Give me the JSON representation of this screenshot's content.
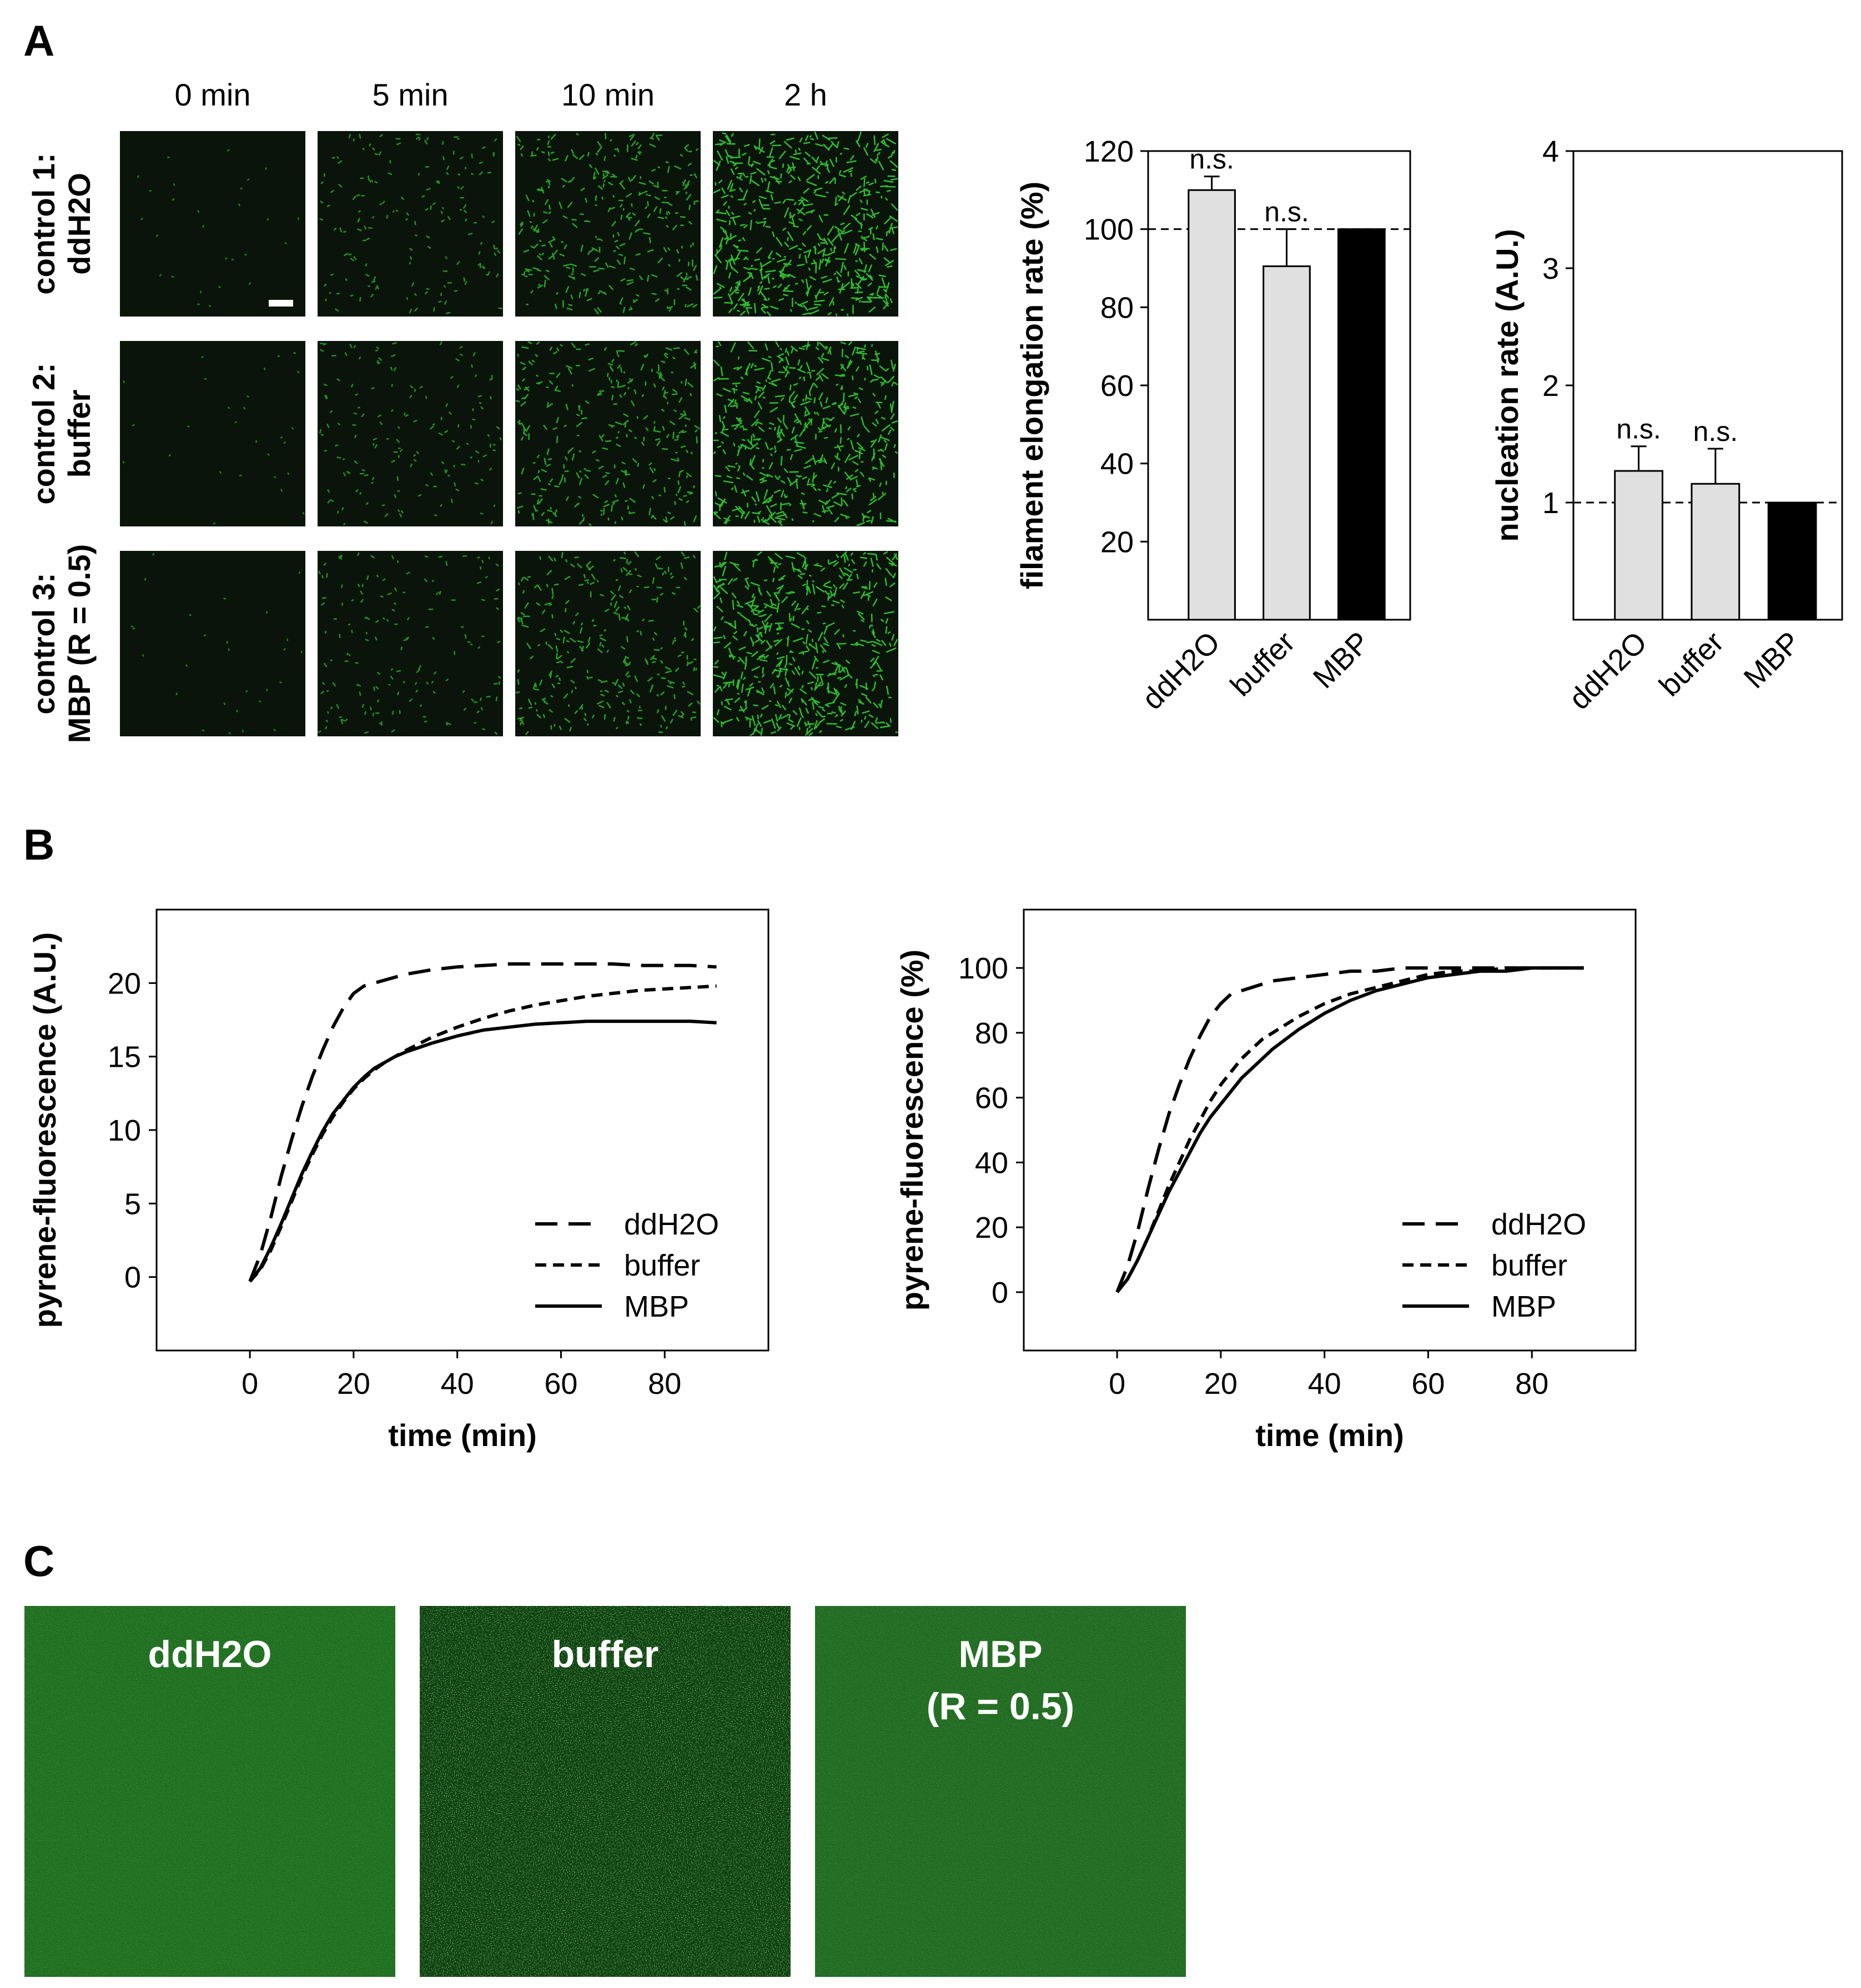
{
  "panels": {
    "a": "A",
    "b": "B",
    "c": "C"
  },
  "panel_a": {
    "time_labels": [
      "0 min",
      "5 min",
      "10 min",
      "2 h"
    ],
    "rows": [
      {
        "line1": "control 1:",
        "line2": "ddH2O",
        "density": [
          0.04,
          0.3,
          0.6,
          1.0
        ]
      },
      {
        "line1": "control 2:",
        "line2": "buffer",
        "density": [
          0.04,
          0.28,
          0.58,
          0.95
        ]
      },
      {
        "line1": "control 3:",
        "line2": "MBP (R = 0.5)",
        "density": [
          0.04,
          0.28,
          0.55,
          0.97
        ]
      }
    ],
    "colors": {
      "image_bg": "#0a140a",
      "filament": "#33cc33"
    }
  },
  "chart_data": [
    {
      "type": "bar",
      "categories": [
        "ddH2O",
        "buffer",
        "MBP"
      ],
      "values": [
        110,
        90.5,
        100
      ],
      "errors": [
        3.5,
        9.5,
        0
      ],
      "annotations": [
        "n.s.",
        "n.s.",
        ""
      ],
      "bar_colors": [
        "#e0e0e0",
        "#e0e0e0",
        "#000000"
      ],
      "ylabel": "filament elongation rate (%)",
      "ylim": [
        0,
        120
      ],
      "yticks": [
        20,
        40,
        60,
        80,
        100,
        120
      ],
      "reference_line": 100
    },
    {
      "type": "bar",
      "categories": [
        "ddH2O",
        "buffer",
        "MBP"
      ],
      "values": [
        1.27,
        1.16,
        1.0
      ],
      "errors": [
        0.21,
        0.3,
        0
      ],
      "annotations": [
        "n.s.",
        "n.s.",
        ""
      ],
      "bar_colors": [
        "#e0e0e0",
        "#e0e0e0",
        "#000000"
      ],
      "ylabel": "nucleation rate (A.U.)",
      "ylim": [
        0,
        4
      ],
      "yticks": [
        1,
        2,
        3,
        4
      ],
      "reference_line": 1
    },
    {
      "type": "line",
      "xlabel": "time (min)",
      "ylabel": "pyrene-fluorescence (A.U.)",
      "xlim": [
        -18,
        100
      ],
      "ylim": [
        -5,
        25
      ],
      "xticks": [
        0,
        20,
        40,
        60,
        80
      ],
      "yticks": [
        0,
        5,
        10,
        15,
        20
      ],
      "legend_position": "bottom-right",
      "series": [
        {
          "name": "ddH2O",
          "style": "long-dash",
          "x": [
            0,
            2,
            4,
            6,
            8,
            10,
            12,
            14,
            16,
            18,
            20,
            22,
            24,
            26,
            28,
            30,
            35,
            40,
            45,
            50,
            55,
            60,
            65,
            70,
            75,
            80,
            85,
            90
          ],
          "y": [
            -0.3,
            1.5,
            4.0,
            6.8,
            9.3,
            11.6,
            13.6,
            15.4,
            17.0,
            18.3,
            19.3,
            19.8,
            20.0,
            20.2,
            20.4,
            20.6,
            20.9,
            21.1,
            21.2,
            21.3,
            21.3,
            21.3,
            21.3,
            21.3,
            21.2,
            21.2,
            21.2,
            21.1
          ]
        },
        {
          "name": "buffer",
          "style": "short-dash",
          "x": [
            0,
            2,
            4,
            6,
            8,
            10,
            12,
            14,
            16,
            18,
            20,
            22,
            24,
            26,
            28,
            30,
            35,
            40,
            45,
            50,
            55,
            60,
            65,
            70,
            75,
            80,
            85,
            90
          ],
          "y": [
            -0.3,
            0.5,
            1.8,
            3.4,
            5.1,
            6.8,
            8.3,
            9.7,
            10.9,
            11.9,
            12.8,
            13.5,
            14.1,
            14.6,
            15.0,
            15.4,
            16.3,
            17.0,
            17.6,
            18.1,
            18.5,
            18.8,
            19.1,
            19.3,
            19.5,
            19.6,
            19.7,
            19.8
          ]
        },
        {
          "name": "MBP",
          "style": "solid",
          "x": [
            0,
            2,
            4,
            6,
            8,
            10,
            12,
            14,
            16,
            18,
            20,
            22,
            24,
            26,
            28,
            30,
            35,
            40,
            45,
            50,
            55,
            60,
            65,
            70,
            75,
            80,
            85,
            90
          ],
          "y": [
            -0.3,
            0.6,
            2.0,
            3.6,
            5.3,
            7.0,
            8.5,
            9.9,
            11.1,
            12.0,
            12.9,
            13.6,
            14.2,
            14.6,
            15.0,
            15.3,
            15.9,
            16.4,
            16.8,
            17.0,
            17.2,
            17.3,
            17.4,
            17.4,
            17.4,
            17.4,
            17.4,
            17.3
          ]
        }
      ]
    },
    {
      "type": "line",
      "xlabel": "time (min)",
      "ylabel": "pyrene-fluorescence (%)",
      "xlim": [
        -18,
        100
      ],
      "ylim": [
        -18,
        118
      ],
      "xticks": [
        0,
        20,
        40,
        60,
        80
      ],
      "yticks": [
        0,
        20,
        40,
        60,
        80,
        100
      ],
      "legend_position": "bottom-right",
      "series": [
        {
          "name": "ddH2O",
          "style": "long-dash",
          "x": [
            0,
            2,
            4,
            6,
            8,
            10,
            12,
            14,
            16,
            18,
            20,
            22,
            24,
            26,
            28,
            30,
            35,
            40,
            45,
            50,
            55,
            60,
            65,
            70,
            75,
            80,
            85,
            90
          ],
          "y": [
            0,
            8,
            19,
            32,
            44,
            55,
            64,
            72,
            79,
            85,
            89,
            92,
            93,
            94,
            95,
            96,
            97,
            98,
            99,
            99,
            100,
            100,
            100,
            100,
            100,
            100,
            100,
            100
          ]
        },
        {
          "name": "buffer",
          "style": "short-dash",
          "x": [
            0,
            2,
            4,
            6,
            8,
            10,
            12,
            14,
            16,
            18,
            20,
            22,
            24,
            26,
            28,
            30,
            35,
            40,
            45,
            50,
            55,
            60,
            65,
            70,
            75,
            80,
            85,
            90
          ],
          "y": [
            0,
            4,
            10,
            17,
            25,
            33,
            40,
            47,
            53,
            59,
            64,
            68,
            72,
            75,
            78,
            80,
            85,
            89,
            92,
            94,
            96,
            98,
            99,
            99,
            100,
            100,
            100,
            100
          ]
        },
        {
          "name": "MBP",
          "style": "solid",
          "x": [
            0,
            2,
            4,
            6,
            8,
            10,
            12,
            14,
            16,
            18,
            20,
            22,
            24,
            26,
            28,
            30,
            35,
            40,
            45,
            50,
            55,
            60,
            65,
            70,
            75,
            80,
            85,
            90
          ],
          "y": [
            0,
            4,
            10,
            17,
            24,
            31,
            37,
            43,
            49,
            54,
            58,
            62,
            66,
            69,
            72,
            75,
            81,
            86,
            90,
            93,
            95,
            97,
            98,
            99,
            99,
            100,
            100,
            100
          ]
        }
      ]
    }
  ],
  "panel_c": {
    "images": [
      {
        "label": "ddH2O",
        "label2": "",
        "bg": "#1d6b1d",
        "grain": 0.5
      },
      {
        "label": "buffer",
        "label2": "",
        "bg": "#0e3e0e",
        "grain": 1.0
      },
      {
        "label": "MBP",
        "label2": "(R = 0.5)",
        "bg": "#1f681f",
        "grain": 0.5
      }
    ]
  }
}
